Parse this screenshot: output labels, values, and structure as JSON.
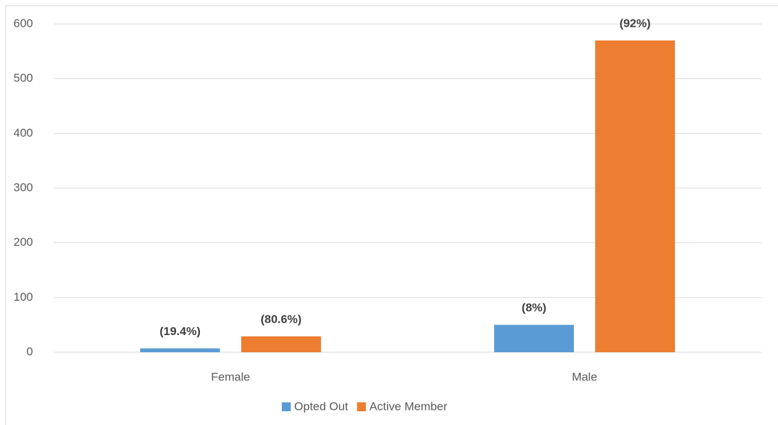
{
  "chart_data": {
    "type": "bar",
    "categories": [
      "Female",
      "Male"
    ],
    "series": [
      {
        "name": "Opted Out",
        "color": "#5b9bd5",
        "values": [
          7,
          50
        ],
        "labels": [
          "(19.4%)",
          "(8%)"
        ]
      },
      {
        "name": "Active Member",
        "color": "#ed7d31",
        "values": [
          29,
          570
        ],
        "labels": [
          "(80.6%)",
          "(92%)"
        ]
      }
    ],
    "ylim": [
      0,
      600
    ],
    "yticks": [
      0,
      100,
      200,
      300,
      400,
      500,
      600
    ],
    "grid": true,
    "legend": "bottom"
  }
}
